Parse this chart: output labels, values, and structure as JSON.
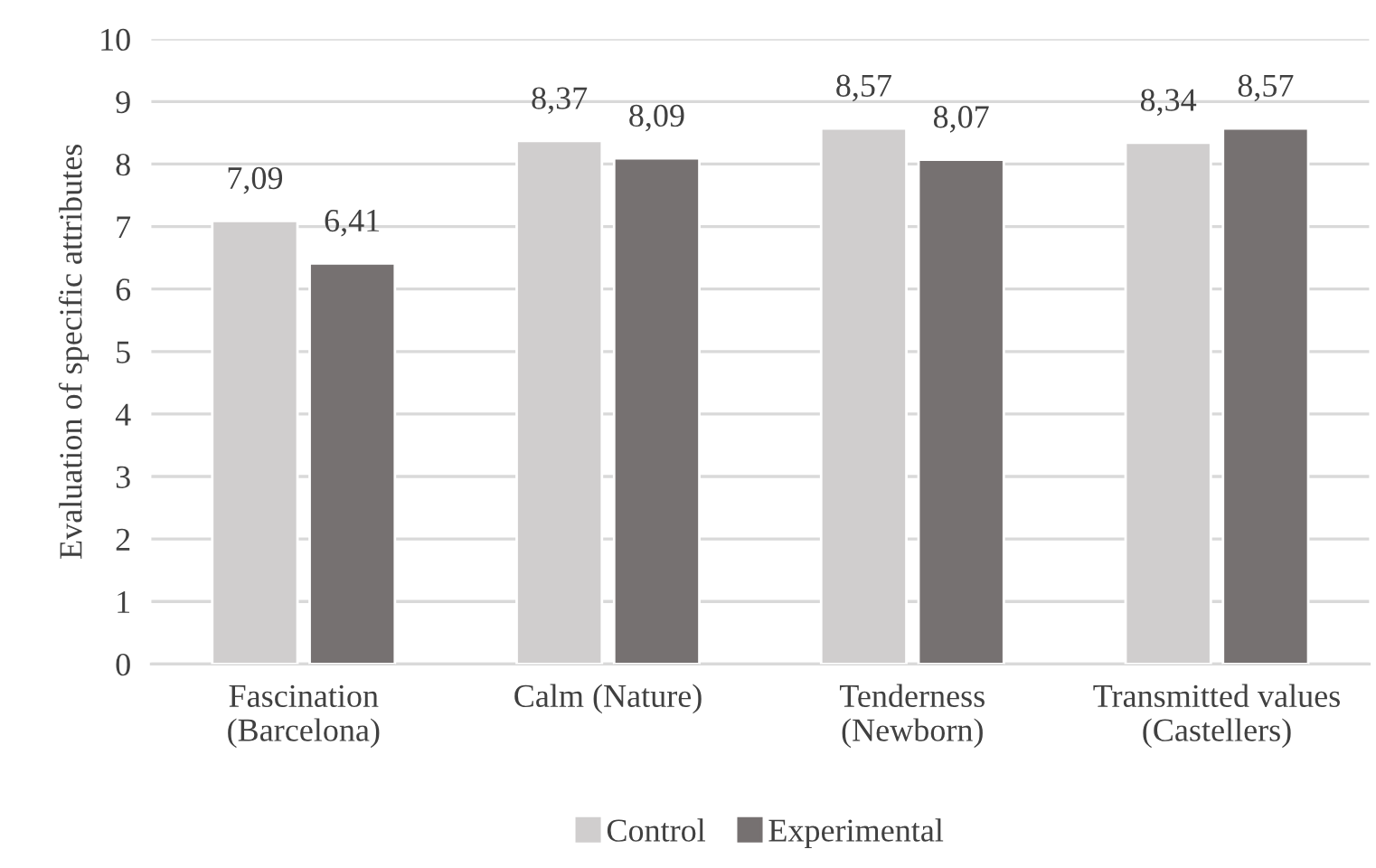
{
  "chart_data": {
    "type": "bar",
    "ylabel": "Evaluation of specific attributes",
    "categories": [
      "Fascination\n(Barcelona)",
      "Calm (Nature)",
      "Tenderness\n(Newborn)",
      "Transmitted values\n(Castellers)"
    ],
    "series": [
      {
        "name": "Control",
        "color": "#d0cece",
        "values": [
          7.09,
          8.37,
          8.57,
          8.34
        ],
        "value_labels": [
          "7,09",
          "8,37",
          "8,57",
          "8,34"
        ]
      },
      {
        "name": "Experimental",
        "color": "#767171",
        "values": [
          6.41,
          8.09,
          8.07,
          8.57
        ],
        "value_labels": [
          "6,41",
          "8,09",
          "8,07",
          "8,57"
        ]
      }
    ],
    "ylim": [
      0,
      10
    ],
    "yticks": [
      0,
      1,
      2,
      3,
      4,
      5,
      6,
      7,
      8,
      9,
      10
    ],
    "grid": "y",
    "legend": "bottom"
  }
}
